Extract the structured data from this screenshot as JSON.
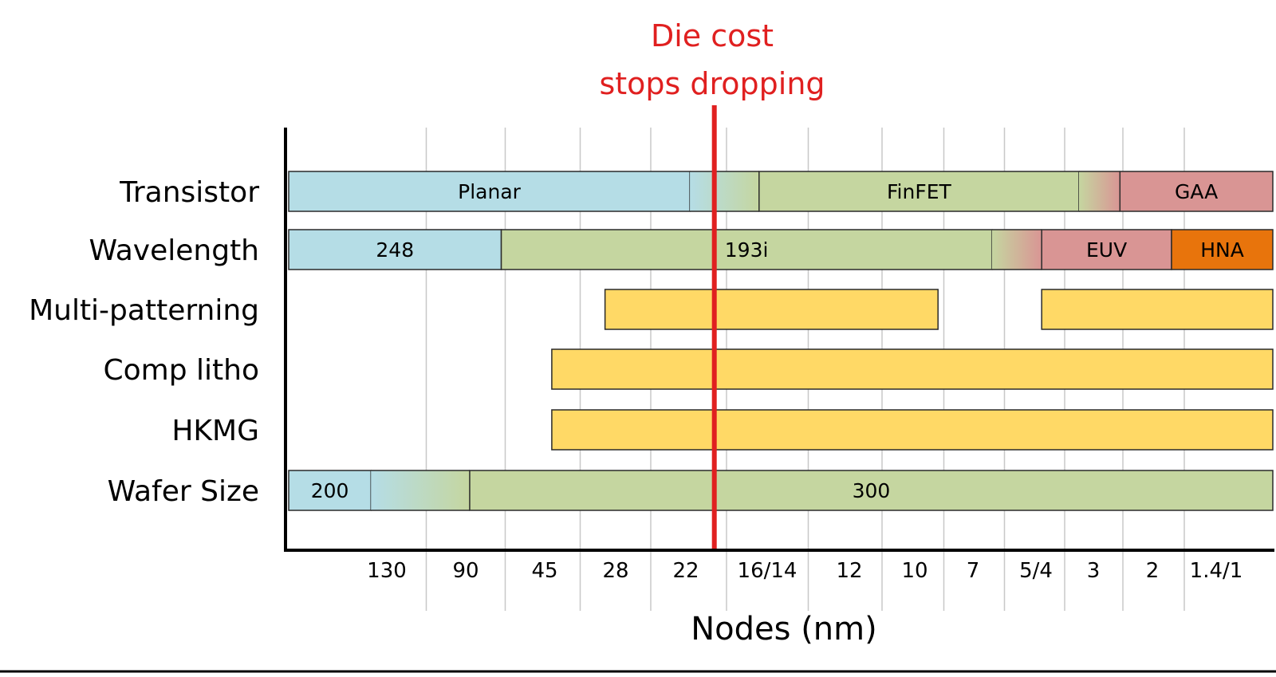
{
  "chart_data": {
    "type": "timeline-bar",
    "xlabel": "Nodes (nm)",
    "nodes": [
      "130",
      "90",
      "45",
      "28",
      "22",
      "16/14",
      "12",
      "10",
      "7",
      "5/4",
      "3",
      "2",
      "1.4/1"
    ],
    "rows": [
      {
        "label": "Transistor",
        "segments": [
          {
            "label": "Planar",
            "start": -1.5,
            "end": 4.05,
            "color": "#b5dde6"
          },
          {
            "label": "",
            "start": 4.05,
            "end": 4.9,
            "color": "transition:#b5dde6>#c5d6a0"
          },
          {
            "label": "FinFET",
            "start": 4.9,
            "end": 9.75,
            "color": "#c5d6a0"
          },
          {
            "label": "",
            "start": 9.75,
            "end": 10.45,
            "color": "transition:#c5d6a0>#d99594"
          },
          {
            "label": "GAA",
            "start": 10.45,
            "end": 12.5,
            "color": "#d99594"
          }
        ]
      },
      {
        "label": "Wavelength",
        "segments": [
          {
            "label": "248",
            "start": -1.5,
            "end": 1.45,
            "color": "#b5dde6"
          },
          {
            "label": "193i",
            "start": 1.45,
            "end": 8.3,
            "color": "#c5d6a0"
          },
          {
            "label": "",
            "start": 8.3,
            "end": 9.1,
            "color": "transition:#c5d6a0>#d99594"
          },
          {
            "label": "EUV",
            "start": 9.1,
            "end": 11.3,
            "color": "#d99594"
          },
          {
            "label": "HNA",
            "start": 11.3,
            "end": 12.5,
            "color": "#e8740c"
          }
        ]
      },
      {
        "label": "Multi-patterning",
        "segments": [
          {
            "label": "",
            "start": 2.85,
            "end": 7.4,
            "color": "#ffd966"
          },
          {
            "label": "",
            "start": 9.1,
            "end": 12.5,
            "color": "#ffd966"
          }
        ]
      },
      {
        "label": "Comp litho",
        "segments": [
          {
            "label": "",
            "start": 2.1,
            "end": 12.5,
            "color": "#ffd966"
          }
        ]
      },
      {
        "label": "HKMG",
        "segments": [
          {
            "label": "",
            "start": 2.1,
            "end": 12.5,
            "color": "#ffd966"
          }
        ]
      },
      {
        "label": "Wafer Size",
        "segments": [
          {
            "label": "200",
            "start": -1.5,
            "end": -0.2,
            "color": "#b5dde6"
          },
          {
            "label": "",
            "start": -0.2,
            "end": 1.05,
            "color": "transition:#b5dde6>#c5d6a0"
          },
          {
            "label": "300",
            "start": 1.05,
            "end": 12.5,
            "color": "#c5d6a0"
          }
        ]
      }
    ],
    "annotation": {
      "text_line1": "Die cost",
      "text_line2": "stops dropping",
      "at_node_between": [
        "22",
        "16/14"
      ],
      "color": "#e02020"
    },
    "grid": true
  }
}
